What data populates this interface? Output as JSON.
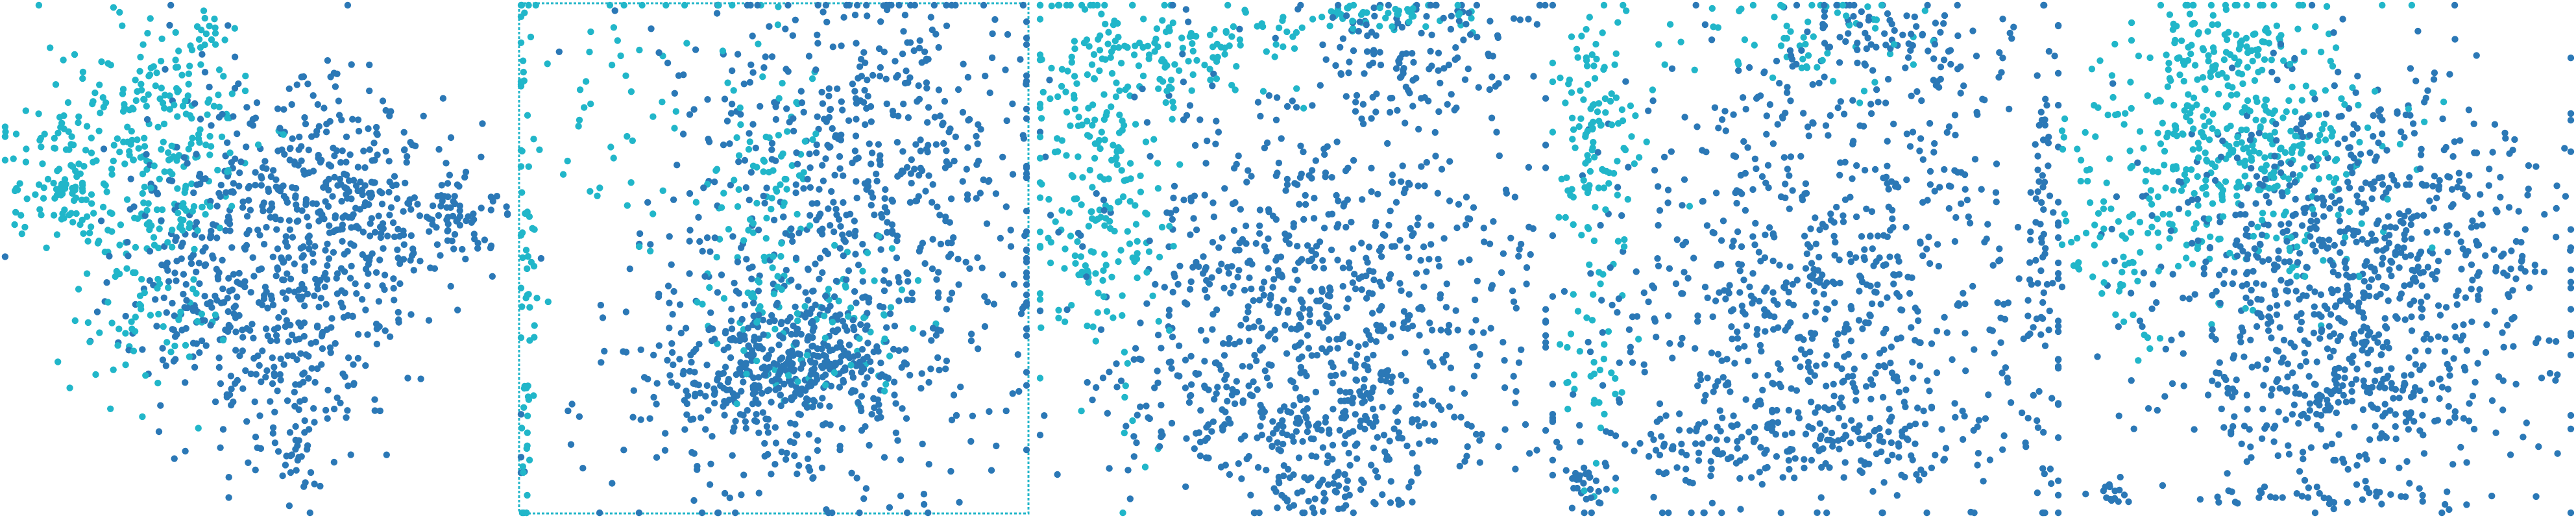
{
  "figure": {
    "panel_count": 5
  },
  "colors": {
    "dark_blue": "#2b78b6",
    "cyan": "#21b6c9",
    "background": "#ffffff"
  },
  "chart_data": [
    {
      "type": "scatter",
      "title": "",
      "xlabel": "",
      "ylabel": "",
      "axes_visible": false,
      "grid": false,
      "legend": "none",
      "series": [
        {
          "color_key": "dark_blue",
          "clusters": [
            {
              "cx": 0.55,
              "cy": 0.42,
              "sx": 0.14,
              "sy": 0.16,
              "n": 420
            },
            {
              "cx": 0.72,
              "cy": 0.4,
              "sx": 0.08,
              "sy": 0.1,
              "n": 160
            },
            {
              "cx": 0.9,
              "cy": 0.42,
              "sx": 0.04,
              "sy": 0.04,
              "n": 60
            },
            {
              "cx": 0.55,
              "cy": 0.72,
              "sx": 0.1,
              "sy": 0.1,
              "n": 140
            },
            {
              "cx": 0.38,
              "cy": 0.58,
              "sx": 0.08,
              "sy": 0.08,
              "n": 100
            },
            {
              "cx": 0.58,
              "cy": 0.92,
              "sx": 0.015,
              "sy": 0.05,
              "n": 18
            }
          ]
        },
        {
          "color_key": "cyan",
          "clusters": [
            {
              "cx": 0.3,
              "cy": 0.28,
              "sx": 0.11,
              "sy": 0.12,
              "n": 280
            },
            {
              "cx": 0.12,
              "cy": 0.37,
              "sx": 0.05,
              "sy": 0.05,
              "n": 70
            },
            {
              "cx": 0.3,
              "cy": 0.62,
              "sx": 0.08,
              "sy": 0.08,
              "n": 70
            },
            {
              "cx": 0.4,
              "cy": 0.05,
              "sx": 0.02,
              "sy": 0.02,
              "n": 12
            }
          ]
        }
      ]
    },
    {
      "type": "scatter",
      "title": "",
      "xlabel": "",
      "ylabel": "",
      "axes_visible": false,
      "grid": false,
      "legend": "none",
      "series": [
        {
          "color_key": "dark_blue",
          "clusters": [
            {
              "cx": 0.52,
              "cy": 0.7,
              "sx": 0.12,
              "sy": 0.06,
              "n": 320
            },
            {
              "cx": 0.65,
              "cy": 0.45,
              "sx": 0.2,
              "sy": 0.22,
              "n": 520
            },
            {
              "cx": 0.7,
              "cy": 0.2,
              "sx": 0.18,
              "sy": 0.12,
              "n": 160
            },
            {
              "cx": 0.45,
              "cy": 0.82,
              "sx": 0.22,
              "sy": 0.1,
              "n": 140
            }
          ]
        },
        {
          "color_key": "cyan",
          "clusters": [
            {
              "cx": 0.15,
              "cy": 0.22,
              "sx": 0.1,
              "sy": 0.16,
              "n": 50
            },
            {
              "cx": 0.48,
              "cy": 0.4,
              "sx": 0.05,
              "sy": 0.16,
              "n": 110
            },
            {
              "cx": 0.02,
              "cy": 0.5,
              "sx": 0.01,
              "sy": 0.3,
              "n": 60
            },
            {
              "cx": 0.6,
              "cy": 0.62,
              "sx": 0.1,
              "sy": 0.08,
              "n": 80
            }
          ]
        }
      ]
    },
    {
      "type": "scatter",
      "title": "",
      "xlabel": "",
      "ylabel": "",
      "axes_visible": false,
      "grid": false,
      "legend": "none",
      "series": [
        {
          "color_key": "dark_blue",
          "clusters": [
            {
              "cx": 0.55,
              "cy": 0.55,
              "sx": 0.2,
              "sy": 0.2,
              "n": 720
            },
            {
              "cx": 0.55,
              "cy": 0.82,
              "sx": 0.2,
              "sy": 0.06,
              "n": 200
            },
            {
              "cx": 0.75,
              "cy": 0.1,
              "sx": 0.12,
              "sy": 0.06,
              "n": 120
            },
            {
              "cx": 0.55,
              "cy": 0.95,
              "sx": 0.05,
              "sy": 0.02,
              "n": 40
            }
          ]
        },
        {
          "color_key": "cyan",
          "clusters": [
            {
              "cx": 0.12,
              "cy": 0.35,
              "sx": 0.07,
              "sy": 0.2,
              "n": 230
            },
            {
              "cx": 0.28,
              "cy": 0.1,
              "sx": 0.12,
              "sy": 0.05,
              "n": 120
            },
            {
              "cx": 0.68,
              "cy": 0.03,
              "sx": 0.1,
              "sy": 0.02,
              "n": 60
            }
          ]
        }
      ]
    },
    {
      "type": "scatter",
      "title": "",
      "xlabel": "",
      "ylabel": "",
      "axes_visible": false,
      "grid": false,
      "legend": "none",
      "series": [
        {
          "color_key": "dark_blue",
          "clusters": [
            {
              "cx": 0.55,
              "cy": 0.55,
              "sx": 0.22,
              "sy": 0.22,
              "n": 720
            },
            {
              "cx": 0.45,
              "cy": 0.85,
              "sx": 0.22,
              "sy": 0.05,
              "n": 200
            },
            {
              "cx": 0.72,
              "cy": 0.1,
              "sx": 0.15,
              "sy": 0.06,
              "n": 100
            },
            {
              "cx": 0.96,
              "cy": 0.5,
              "sx": 0.01,
              "sy": 0.3,
              "n": 60
            },
            {
              "cx": 0.08,
              "cy": 0.94,
              "sx": 0.02,
              "sy": 0.02,
              "n": 25
            }
          ]
        },
        {
          "color_key": "cyan",
          "clusters": [
            {
              "cx": 0.1,
              "cy": 0.25,
              "sx": 0.05,
              "sy": 0.12,
              "n": 120
            },
            {
              "cx": 0.5,
              "cy": 0.08,
              "sx": 0.12,
              "sy": 0.05,
              "n": 60
            },
            {
              "cx": 0.08,
              "cy": 0.7,
              "sx": 0.04,
              "sy": 0.1,
              "n": 40
            }
          ]
        }
      ]
    },
    {
      "type": "scatter",
      "title": "",
      "xlabel": "",
      "ylabel": "",
      "axes_visible": false,
      "grid": false,
      "legend": "none",
      "series": [
        {
          "color_key": "dark_blue",
          "clusters": [
            {
              "cx": 0.58,
              "cy": 0.52,
              "sx": 0.2,
              "sy": 0.18,
              "n": 820
            },
            {
              "cx": 0.55,
              "cy": 0.78,
              "sx": 0.15,
              "sy": 0.06,
              "n": 160
            },
            {
              "cx": 0.55,
              "cy": 0.96,
              "sx": 0.12,
              "sy": 0.01,
              "n": 40
            },
            {
              "cx": 0.1,
              "cy": 0.95,
              "sx": 0.03,
              "sy": 0.02,
              "n": 15
            }
          ]
        },
        {
          "color_key": "cyan",
          "clusters": [
            {
              "cx": 0.35,
              "cy": 0.28,
              "sx": 0.14,
              "sy": 0.14,
              "n": 420
            },
            {
              "cx": 0.3,
              "cy": 0.08,
              "sx": 0.08,
              "sy": 0.04,
              "n": 60
            },
            {
              "cx": 0.12,
              "cy": 0.45,
              "sx": 0.06,
              "sy": 0.1,
              "n": 60
            }
          ]
        }
      ]
    }
  ]
}
